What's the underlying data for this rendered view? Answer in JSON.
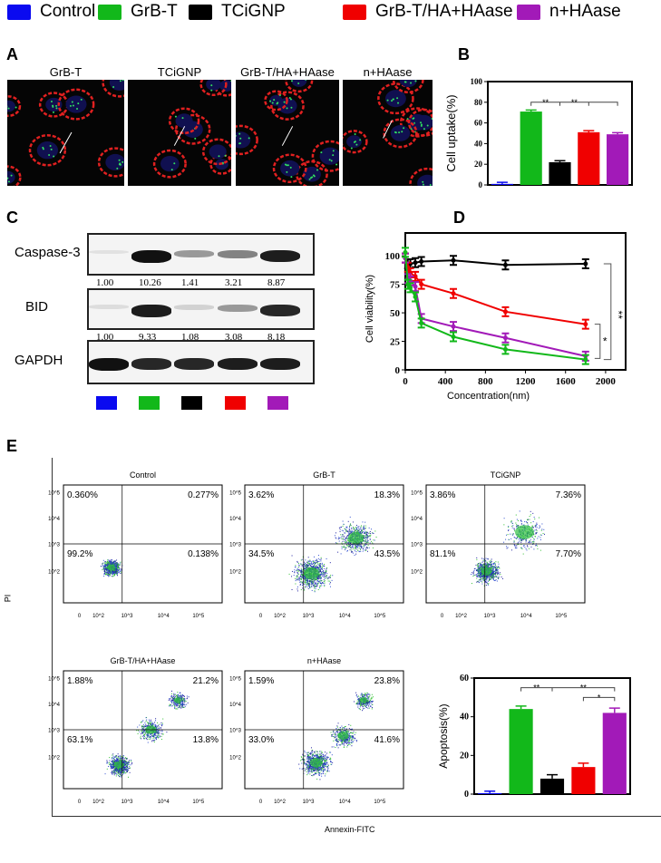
{
  "legend": [
    {
      "label": "Control",
      "color": "#0a0af0"
    },
    {
      "label": "GrB-T",
      "color": "#12b81a"
    },
    {
      "label": "TCiGNP",
      "color": "#000000"
    },
    {
      "label": "GrB-T/HA+HAase",
      "color": "#f00000"
    },
    {
      "label": "n+HAase",
      "color": "#a21ab8"
    }
  ],
  "panels": {
    "a": "A",
    "b": "B",
    "c": "C",
    "d": "D",
    "e": "E"
  },
  "panel_a": {
    "titles": [
      "GrB-T",
      "TCiGNP",
      "GrB-T/HA+HAase",
      "n+HAase"
    ]
  },
  "chart_data": [
    {
      "id": "B",
      "type": "bar",
      "ylabel": "Cell uptake(%)",
      "ylim": [
        0,
        100
      ],
      "yticks": [
        0,
        20,
        40,
        60,
        80,
        100
      ],
      "categories": [
        "Control",
        "GrB-T",
        "TCiGNP",
        "GrB-T/HA+HAase",
        "n+HAase"
      ],
      "values": [
        1,
        71,
        22,
        51,
        49
      ],
      "errors": [
        1.5,
        1.5,
        1.5,
        1.5,
        1.5
      ],
      "significance": [
        {
          "label": "**"
        },
        {
          "label": "**"
        }
      ]
    },
    {
      "id": "C",
      "type": "table",
      "rows": [
        {
          "label": "Caspase-3",
          "values": [
            "1.00",
            "10.26",
            "1.41",
            "3.21",
            "8.87"
          ]
        },
        {
          "label": "BID",
          "values": [
            "1.00",
            "9.33",
            "1.08",
            "3.08",
            "8.18"
          ]
        },
        {
          "label": "GAPDH",
          "values": []
        }
      ]
    },
    {
      "id": "D",
      "type": "line",
      "xlabel": "Concentration(nm)",
      "ylabel": "Cell viability(%)",
      "xlim": [
        0,
        2200
      ],
      "ylim": [
        0,
        120
      ],
      "xticks": [
        0,
        400,
        800,
        1200,
        1600,
        2000
      ],
      "yticks": [
        0,
        25,
        50,
        75,
        100
      ],
      "x": [
        0,
        25,
        50,
        100,
        160,
        480,
        1000,
        1800
      ],
      "series": [
        {
          "color": "#000000",
          "values": [
            98,
            93,
            93,
            94,
            95,
            96,
            92,
            93
          ]
        },
        {
          "color": "#f00000",
          "values": [
            98,
            90,
            85,
            82,
            75,
            67,
            51,
            40
          ]
        },
        {
          "color": "#a21ab8",
          "values": [
            98,
            80,
            78,
            73,
            45,
            38,
            28,
            12
          ]
        },
        {
          "color": "#12b81a",
          "values": [
            103,
            75,
            72,
            64,
            41,
            29,
            18,
            9
          ]
        }
      ],
      "significance": [
        {
          "label": "**"
        },
        {
          "label": "*"
        }
      ]
    },
    {
      "id": "E-flow",
      "type": "scatter",
      "xlabel": "Annexin-FITC",
      "ylabel": "PI",
      "ticks_x": [
        "0",
        "10^2",
        "10^3",
        "10^4",
        "10^5"
      ],
      "ticks_y": [
        "10^2",
        "10^3",
        "10^4",
        "10^5"
      ],
      "plots": [
        {
          "title": "Control",
          "q": [
            "0.360%",
            "0.277%",
            "99.2%",
            "0.138%"
          ]
        },
        {
          "title": "GrB-T",
          "q": [
            "3.62%",
            "18.3%",
            "34.5%",
            "43.5%"
          ]
        },
        {
          "title": "TCiGNP",
          "q": [
            "3.86%",
            "7.36%",
            "81.1%",
            "7.70%"
          ]
        },
        {
          "title": "GrB-T/HA+HAase",
          "q": [
            "1.88%",
            "21.2%",
            "63.1%",
            "13.8%"
          ]
        },
        {
          "title": "n+HAase",
          "q": [
            "1.59%",
            "23.8%",
            "33.0%",
            "41.6%"
          ]
        }
      ]
    },
    {
      "id": "E-bar",
      "type": "bar",
      "ylabel": "Apoptosis(%)",
      "ylim": [
        0,
        60
      ],
      "yticks": [
        0,
        20,
        40,
        60
      ],
      "categories": [
        "Control",
        "GrB-T",
        "TCiGNP",
        "GrB-T/HA+HAase",
        "n+HAase"
      ],
      "values": [
        0.5,
        44,
        8,
        14,
        42
      ],
      "errors": [
        1,
        1.5,
        2,
        2,
        2.5
      ],
      "significance": [
        {
          "label": "**"
        },
        {
          "label": "**"
        },
        {
          "label": "*"
        }
      ]
    }
  ]
}
